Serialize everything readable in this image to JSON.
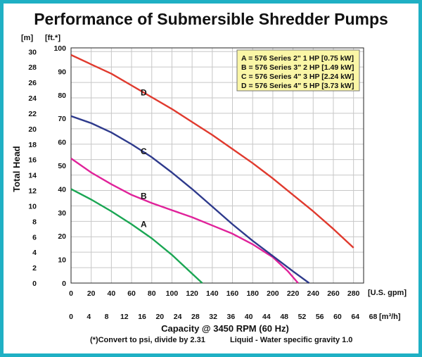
{
  "chart_data": {
    "type": "line",
    "title": "Performance of Submersible Shredder Pumps",
    "xlabel": "Capacity @ 3450 RPM (60 Hz)",
    "ylabel": "Total Head",
    "x_unit_primary": "[U.S. gpm]",
    "x_unit_secondary": "[m³/h]",
    "y_unit_left": "[m]",
    "y_unit_right": "[ft.*]",
    "xlim": [
      0,
      290
    ],
    "ylim_ft": [
      0,
      100
    ],
    "x_ticks_gpm": [
      "0",
      "20",
      "40",
      "60",
      "80",
      "100",
      "120",
      "140",
      "160",
      "180",
      "200",
      "220",
      "240",
      "260",
      "280"
    ],
    "x_ticks_m3h": [
      "0",
      "4",
      "8",
      "12",
      "16",
      "20",
      "24",
      "28",
      "32",
      "36",
      "40",
      "44",
      "48",
      "52",
      "56",
      "60",
      "64",
      "68"
    ],
    "y_ticks_m": [
      "0",
      "2",
      "4",
      "6",
      "8",
      "10",
      "12",
      "14",
      "16",
      "18",
      "20",
      "22",
      "24",
      "26",
      "28",
      "30"
    ],
    "y_ticks_ft": [
      "0",
      "10",
      "20",
      "30",
      "40",
      "50",
      "60",
      "70",
      "80",
      "90",
      "100"
    ],
    "grid": true,
    "legend_position": "top-right",
    "legend": [
      "A = 576 Series 2\" 1 HP [0.75 kW]",
      "B = 576 Series 3\" 2 HP [1.49 kW]",
      "C = 576 Series 4\" 3 HP [2.24 kW]",
      "D = 576 Series 4\" 5 HP [3.73 kW]"
    ],
    "series": [
      {
        "name": "A",
        "color": "#1aa653",
        "label_at": [
          72,
          25
        ],
        "points": [
          [
            0,
            40
          ],
          [
            20,
            35.5
          ],
          [
            40,
            30.5
          ],
          [
            60,
            25
          ],
          [
            80,
            19
          ],
          [
            100,
            12
          ],
          [
            120,
            4
          ],
          [
            130,
            0
          ]
        ]
      },
      {
        "name": "B",
        "color": "#e0229a",
        "label_at": [
          72,
          37
        ],
        "points": [
          [
            0,
            53
          ],
          [
            20,
            47
          ],
          [
            40,
            42
          ],
          [
            60,
            37.5
          ],
          [
            80,
            34
          ],
          [
            100,
            31
          ],
          [
            120,
            28
          ],
          [
            140,
            24.5
          ],
          [
            160,
            21
          ],
          [
            180,
            16.5
          ],
          [
            200,
            11
          ],
          [
            215,
            5
          ],
          [
            225,
            0
          ]
        ]
      },
      {
        "name": "C",
        "color": "#2e3a8c",
        "label_at": [
          72,
          56
        ],
        "points": [
          [
            0,
            71
          ],
          [
            20,
            68
          ],
          [
            40,
            64
          ],
          [
            60,
            59
          ],
          [
            80,
            53.5
          ],
          [
            100,
            47
          ],
          [
            120,
            40
          ],
          [
            140,
            32.5
          ],
          [
            160,
            25
          ],
          [
            180,
            18
          ],
          [
            200,
            11.5
          ],
          [
            220,
            5
          ],
          [
            236,
            0
          ]
        ]
      },
      {
        "name": "D",
        "color": "#e03a2e",
        "label_at": [
          72,
          81
        ],
        "points": [
          [
            0,
            97
          ],
          [
            20,
            93
          ],
          [
            40,
            89
          ],
          [
            60,
            84
          ],
          [
            80,
            79
          ],
          [
            100,
            74
          ],
          [
            120,
            68.5
          ],
          [
            140,
            63
          ],
          [
            160,
            57
          ],
          [
            180,
            51
          ],
          [
            200,
            44.5
          ],
          [
            220,
            37.5
          ],
          [
            240,
            30.5
          ],
          [
            260,
            23
          ],
          [
            280,
            15
          ]
        ]
      }
    ],
    "footnote_1": "(*)Convert to psi, divide by 2.31",
    "footnote_2": "Liquid - Water specific gravity 1.0"
  }
}
